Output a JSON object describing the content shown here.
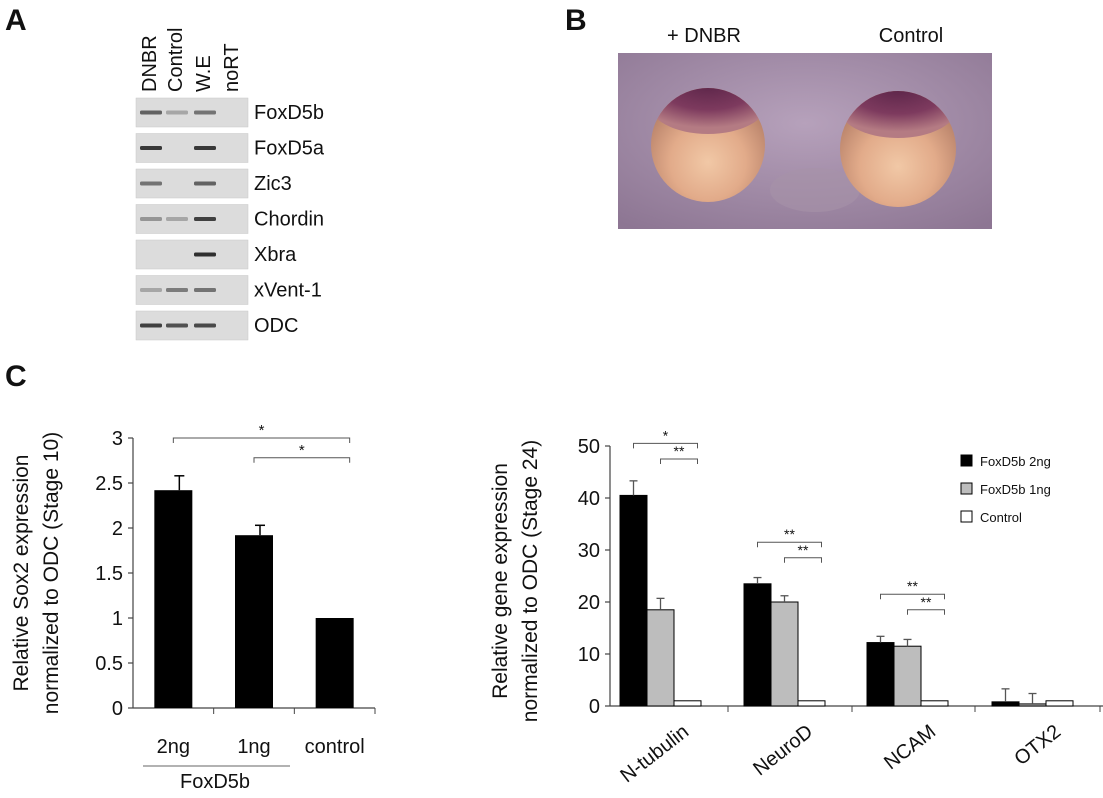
{
  "panels": {
    "a": "A",
    "b": "B",
    "c": "C"
  },
  "gel": {
    "lanes": [
      "DNBR",
      "Control",
      "W.E",
      "noRT"
    ],
    "genes": [
      {
        "name": "FoxD5b",
        "bands": [
          0.6,
          0.2,
          0.5,
          0
        ]
      },
      {
        "name": "FoxD5a",
        "bands": [
          0.85,
          0,
          0.85,
          0
        ]
      },
      {
        "name": "Zic3",
        "bands": [
          0.5,
          0,
          0.6,
          0
        ]
      },
      {
        "name": "Chordin",
        "bands": [
          0.3,
          0.2,
          0.8,
          0
        ]
      },
      {
        "name": "Xbra",
        "bands": [
          0,
          0,
          0.9,
          0
        ]
      },
      {
        "name": "xVent-1",
        "bands": [
          0.2,
          0.45,
          0.5,
          0
        ]
      },
      {
        "name": "ODC",
        "bands": [
          0.8,
          0.7,
          0.75,
          0
        ]
      }
    ]
  },
  "embryo_labels": [
    "+ DNBR",
    "Control"
  ],
  "chart_data": [
    {
      "type": "bar",
      "ylabel": "Relative Sox2 expression normalized to ODC (Stage 10)",
      "ylabel_lines": [
        "Relative Sox2 expression",
        "normalized to ODC  (Stage 10)"
      ],
      "ylim": [
        0,
        3
      ],
      "yticks": [
        0,
        0.5,
        1,
        1.5,
        2,
        2.5,
        3
      ],
      "ytick_labels": [
        "0",
        "0.5",
        "1",
        "1.5",
        "2",
        "2.5",
        "3"
      ],
      "categories": [
        "2ng",
        "1ng",
        "control"
      ],
      "group_label": "FoxD5b",
      "values": [
        2.42,
        1.92,
        1.0
      ],
      "errors": [
        0.16,
        0.11,
        0
      ],
      "bar_color": "#000000",
      "significance": [
        {
          "from": 0,
          "to": 2,
          "label": "*",
          "level": 3.0
        },
        {
          "from": 1,
          "to": 2,
          "label": "*",
          "level": 2.78
        }
      ]
    },
    {
      "type": "bar",
      "ylabel": "Relative gene expression normalized to ODC (Stage 24)",
      "ylabel_lines": [
        "Relative gene expression",
        "normalized to ODC (Stage 24)"
      ],
      "ylim": [
        0,
        50
      ],
      "yticks": [
        0,
        10,
        20,
        30,
        40,
        50
      ],
      "ytick_labels": [
        "0",
        "10",
        "20",
        "30",
        "40",
        "50"
      ],
      "categories": [
        "N-tubulin",
        "NeuroD",
        "NCAM",
        "OTX2"
      ],
      "series": [
        {
          "name": "FoxD5b 2ng",
          "color": "#000000",
          "values": [
            40.5,
            23.5,
            12.2,
            0.8
          ],
          "errors": [
            2.8,
            1.2,
            1.2,
            2.5
          ]
        },
        {
          "name": "FoxD5b 1ng",
          "color": "#bdbdbd",
          "values": [
            18.5,
            20.0,
            11.5,
            0.4
          ],
          "errors": [
            2.2,
            1.2,
            1.3,
            2.0
          ]
        },
        {
          "name": "Control",
          "color": "#ffffff",
          "values": [
            1.0,
            1.0,
            1.0,
            1.0
          ],
          "errors": [
            0,
            0,
            0,
            0
          ]
        }
      ],
      "legend_position": "top-right",
      "significance": [
        {
          "category": 0,
          "from": 0,
          "to": 2,
          "label": "*",
          "level": 50.5
        },
        {
          "category": 0,
          "from": 1,
          "to": 2,
          "label": "**",
          "level": 47.5
        },
        {
          "category": 1,
          "from": 0,
          "to": 2,
          "label": "**",
          "level": 31.5
        },
        {
          "category": 1,
          "from": 1,
          "to": 2,
          "label": "**",
          "level": 28.5
        },
        {
          "category": 2,
          "from": 0,
          "to": 2,
          "label": "**",
          "level": 21.5
        },
        {
          "category": 2,
          "from": 1,
          "to": 2,
          "label": "**",
          "level": 18.5
        }
      ]
    }
  ]
}
